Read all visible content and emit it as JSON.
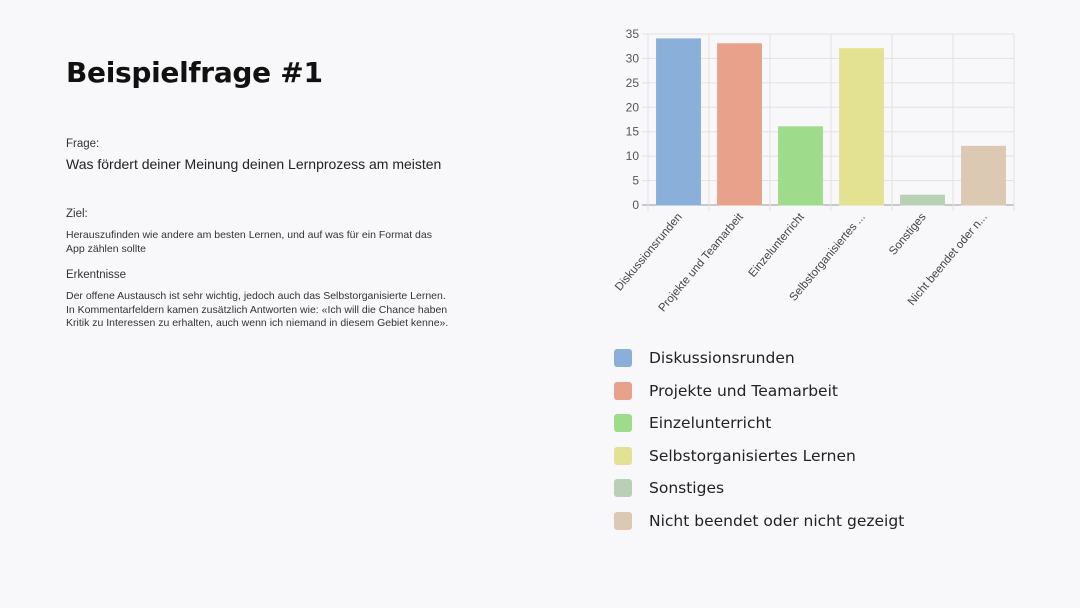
{
  "slide": {
    "title": "Beispielfrage #1",
    "question_label": "Frage:",
    "question": "Was fördert deiner Meinung deinen Lernprozess am meisten",
    "goal_label": "Ziel:",
    "goal": "Herauszufinden wie andere am besten Lernen, und auf was für ein Format das App zählen sollte",
    "insights_label": "Erkentnisse",
    "insights": "Der offene Austausch ist sehr wichtig, jedoch auch das Selbstorganisierte Lernen. In Kommentarfeldern kamen zusätzlich Antworten wie: «Ich will die Chance haben Kritik zu Interessen zu erhalten, auch wenn ich niemand in diesem Gebiet kenne»."
  },
  "chart_data": {
    "type": "bar",
    "categories": [
      "Diskussionsrunden",
      "Projekte und Teamarbeit",
      "Einzelunterricht",
      "Selbstorganisiertes Lernen",
      "Sonstiges",
      "Nicht beendet oder nicht gezeigt"
    ],
    "tick_labels": [
      "Diskussionsrunden",
      "Projekte und Teamarbeit",
      "Einzelunterricht",
      "Selbstorganisiertes ...",
      "Sonstiges",
      "Nicht beendet oder n..."
    ],
    "values": [
      34,
      33,
      16,
      32,
      2,
      12
    ],
    "colors": [
      "#8ab0d9",
      "#e8a28b",
      "#9edc8c",
      "#e3e293",
      "#b8d1b4",
      "#dcc9b4"
    ],
    "ylim": [
      0,
      35
    ],
    "yticks": [
      0,
      5,
      10,
      15,
      20,
      25,
      30,
      35
    ],
    "grid": true,
    "legend_position": "bottom"
  }
}
